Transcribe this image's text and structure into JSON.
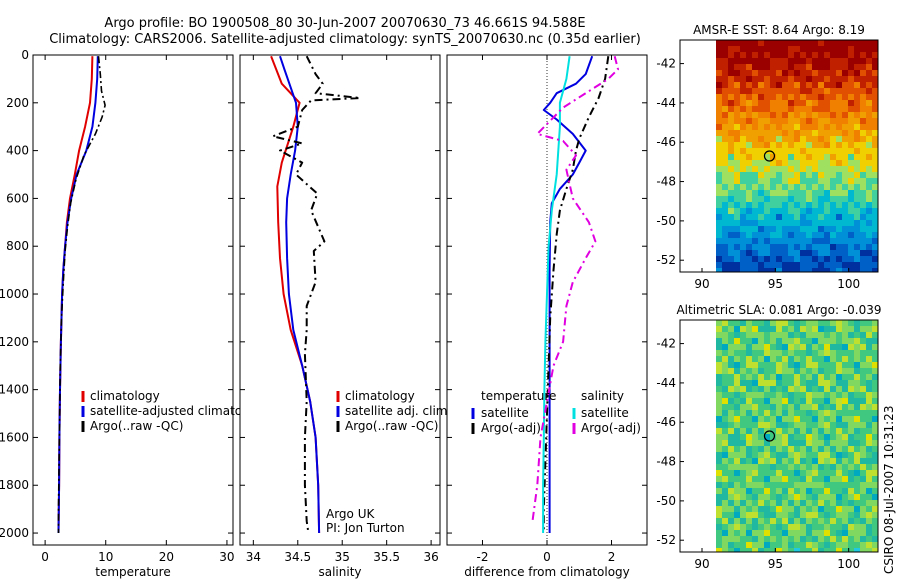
{
  "header": {
    "line1": "Argo profile: BO 1900508_80 30-Jun-2007 20070630_73 46.661S 94.588E",
    "line2": "Climatology: CARS2006. Satellite-adjusted climatology: synTS_20070630.nc (0.35d earlier)"
  },
  "footer": {
    "credit_line1": "Argo UK",
    "credit_line2": "PI: Jon Turton",
    "stamp": "CSIRO 08-Jul-2007 10:31:23"
  },
  "chart_data": [
    {
      "type": "line",
      "id": "temperature",
      "xlabel": "temperature",
      "ylabel": "",
      "xlim": [
        -2,
        31
      ],
      "ylim": [
        2050,
        0
      ],
      "xticks": [
        0,
        10,
        20,
        30
      ],
      "yticks": [
        0,
        200,
        400,
        600,
        800,
        1000,
        1200,
        1400,
        1600,
        1800,
        2000
      ],
      "legend": [
        "climatology",
        "satellite-adjusted climatology",
        "Argo(..raw -QC)"
      ],
      "series": [
        {
          "name": "climatology",
          "color": "#e00000",
          "dash": "",
          "width": 2,
          "points": [
            [
              7.8,
              5
            ],
            [
              7.7,
              100
            ],
            [
              7.4,
              200
            ],
            [
              6.6,
              300
            ],
            [
              5.6,
              400
            ],
            [
              4.9,
              500
            ],
            [
              4.1,
              600
            ],
            [
              3.6,
              700
            ],
            [
              3.3,
              800
            ],
            [
              3.0,
              900
            ],
            [
              2.8,
              1000
            ],
            [
              2.6,
              1200
            ],
            [
              2.45,
              1400
            ],
            [
              2.35,
              1600
            ],
            [
              2.3,
              1800
            ],
            [
              2.2,
              2000
            ]
          ]
        },
        {
          "name": "satellite-adjusted climatology",
          "color": "#0000e0",
          "dash": "",
          "width": 2,
          "points": [
            [
              8.7,
              5
            ],
            [
              8.6,
              100
            ],
            [
              8.3,
              200
            ],
            [
              7.8,
              300
            ],
            [
              6.8,
              400
            ],
            [
              5.2,
              500
            ],
            [
              4.3,
              600
            ],
            [
              3.7,
              700
            ],
            [
              3.3,
              800
            ],
            [
              3.0,
              900
            ],
            [
              2.8,
              1000
            ],
            [
              2.6,
              1200
            ],
            [
              2.45,
              1400
            ],
            [
              2.35,
              1600
            ],
            [
              2.3,
              1800
            ],
            [
              2.2,
              2000
            ]
          ]
        },
        {
          "name": "Argo(..raw -QC)",
          "color": "#000000",
          "dash": "7,3,2,3",
          "width": 1.6,
          "points": [
            [
              8.8,
              5
            ],
            [
              9.1,
              80
            ],
            [
              9.3,
              150
            ],
            [
              9.9,
              210
            ],
            [
              9.4,
              260
            ],
            [
              8.3,
              330
            ],
            [
              6.4,
              420
            ],
            [
              5.1,
              520
            ],
            [
              4.2,
              620
            ],
            [
              3.7,
              720
            ],
            [
              3.3,
              820
            ],
            [
              3.0,
              950
            ],
            [
              2.7,
              1100
            ],
            [
              2.5,
              1300
            ],
            [
              2.4,
              1500
            ],
            [
              2.3,
              1700
            ],
            [
              2.2,
              1900
            ],
            [
              2.2,
              2000
            ]
          ]
        }
      ]
    },
    {
      "type": "line",
      "id": "salinity",
      "xlabel": "salinity",
      "ylabel": "",
      "xlim": [
        33.85,
        36.1
      ],
      "ylim": [
        2050,
        0
      ],
      "xticks": [
        34,
        34.5,
        35,
        35.5,
        36
      ],
      "legend": [
        "climatology",
        "satellite adj. clim.",
        "Argo(..raw -QC)"
      ],
      "series": [
        {
          "name": "climatology",
          "color": "#e00000",
          "dash": "",
          "width": 2,
          "points": [
            [
              34.2,
              5
            ],
            [
              34.32,
              120
            ],
            [
              34.52,
              200
            ],
            [
              34.45,
              300
            ],
            [
              34.32,
              450
            ],
            [
              34.27,
              550
            ],
            [
              34.28,
              700
            ],
            [
              34.3,
              850
            ],
            [
              34.34,
              1000
            ],
            [
              34.42,
              1150
            ],
            [
              34.55,
              1300
            ],
            [
              34.64,
              1450
            ],
            [
              34.7,
              1600
            ],
            [
              34.73,
              1800
            ],
            [
              34.74,
              2000
            ]
          ]
        },
        {
          "name": "satellite adj. clim.",
          "color": "#0000e0",
          "dash": "",
          "width": 2,
          "points": [
            [
              34.3,
              5
            ],
            [
              34.35,
              60
            ],
            [
              34.48,
              200
            ],
            [
              34.5,
              300
            ],
            [
              34.47,
              400
            ],
            [
              34.42,
              500
            ],
            [
              34.38,
              600
            ],
            [
              34.37,
              700
            ],
            [
              34.38,
              850
            ],
            [
              34.4,
              1000
            ],
            [
              34.45,
              1150
            ],
            [
              34.55,
              1300
            ],
            [
              34.64,
              1450
            ],
            [
              34.7,
              1600
            ],
            [
              34.73,
              1800
            ],
            [
              34.74,
              2000
            ]
          ]
        },
        {
          "name": "Argo(..raw -QC)",
          "color": "#000000",
          "dash": "8,4,2,4",
          "width": 2,
          "points": [
            [
              34.6,
              5
            ],
            [
              34.7,
              80
            ],
            [
              34.78,
              120
            ],
            [
              34.7,
              160
            ],
            [
              35.2,
              180
            ],
            [
              34.65,
              190
            ],
            [
              34.55,
              230
            ],
            [
              34.5,
              300
            ],
            [
              34.22,
              340
            ],
            [
              34.55,
              370
            ],
            [
              34.3,
              400
            ],
            [
              34.55,
              450
            ],
            [
              34.48,
              500
            ],
            [
              34.72,
              580
            ],
            [
              34.65,
              650
            ],
            [
              34.8,
              780
            ],
            [
              34.68,
              820
            ],
            [
              34.7,
              950
            ],
            [
              34.6,
              1050
            ],
            [
              34.6,
              1150
            ],
            [
              34.58,
              1250
            ],
            [
              34.6,
              1450
            ],
            [
              34.58,
              1600
            ],
            [
              34.58,
              1800
            ],
            [
              34.6,
              1950
            ],
            [
              34.62,
              2000
            ]
          ]
        }
      ]
    },
    {
      "type": "line",
      "id": "difference",
      "xlabel": "difference from climatology",
      "ylabel": "",
      "xlim": [
        -3.1,
        3.1
      ],
      "ylim": [
        2050,
        0
      ],
      "xticks": [
        -2,
        0,
        2
      ],
      "legend_left_title": "temperature",
      "legend_left": [
        "satellite",
        "Argo(-adj)"
      ],
      "legend_right_title": "salinity",
      "legend_right": [
        "satellite",
        "Argo(-adj)"
      ],
      "series": [
        {
          "name": "temperature satellite",
          "color": "#0000e0",
          "dash": "",
          "width": 2,
          "points": [
            [
              1.4,
              5
            ],
            [
              1.2,
              80
            ],
            [
              0.9,
              120
            ],
            [
              0.3,
              160
            ],
            [
              0.1,
              200
            ],
            [
              -0.1,
              230
            ],
            [
              0.3,
              270
            ],
            [
              0.8,
              330
            ],
            [
              1.2,
              400
            ],
            [
              1.0,
              450
            ],
            [
              0.8,
              500
            ],
            [
              0.4,
              560
            ],
            [
              0.15,
              620
            ],
            [
              0.1,
              700
            ],
            [
              0.08,
              900
            ],
            [
              0.08,
              1200
            ],
            [
              0.08,
              1600
            ],
            [
              0.08,
              2000
            ]
          ]
        },
        {
          "name": "temperature Argo(-adj)",
          "color": "#000000",
          "dash": "8,4,2,4",
          "width": 2,
          "points": [
            [
              1.9,
              5
            ],
            [
              1.8,
              100
            ],
            [
              1.6,
              180
            ],
            [
              1.3,
              260
            ],
            [
              1.0,
              350
            ],
            [
              0.9,
              400
            ],
            [
              0.8,
              480
            ],
            [
              0.6,
              560
            ],
            [
              0.4,
              650
            ],
            [
              0.3,
              750
            ],
            [
              0.2,
              900
            ],
            [
              0.1,
              1100
            ],
            [
              0.05,
              1300
            ],
            [
              0.0,
              1500
            ],
            [
              -0.05,
              1700
            ],
            [
              -0.1,
              1900
            ],
            [
              -0.1,
              2000
            ]
          ]
        },
        {
          "name": "salinity satellite",
          "color": "#00e0e0",
          "dash": "",
          "width": 2,
          "points": [
            [
              0.7,
              5
            ],
            [
              0.6,
              100
            ],
            [
              0.4,
              200
            ],
            [
              0.4,
              300
            ],
            [
              0.35,
              400
            ],
            [
              0.3,
              500
            ],
            [
              0.15,
              650
            ],
            [
              0.05,
              800
            ],
            [
              0.0,
              1000
            ],
            [
              -0.05,
              1200
            ],
            [
              -0.08,
              1400
            ],
            [
              -0.1,
              1600
            ],
            [
              -0.12,
              1800
            ],
            [
              -0.12,
              2000
            ]
          ]
        },
        {
          "name": "salinity Argo(-adj)",
          "color": "#e000e0",
          "dash": "8,4,2,4",
          "width": 2,
          "points": [
            [
              2.1,
              5
            ],
            [
              2.2,
              60
            ],
            [
              1.9,
              100
            ],
            [
              1.2,
              160
            ],
            [
              0.5,
              220
            ],
            [
              -0.3,
              330
            ],
            [
              0.5,
              360
            ],
            [
              0.9,
              420
            ],
            [
              0.6,
              480
            ],
            [
              0.8,
              600
            ],
            [
              1.3,
              700
            ],
            [
              1.5,
              780
            ],
            [
              1.2,
              850
            ],
            [
              0.8,
              950
            ],
            [
              0.6,
              1050
            ],
            [
              0.5,
              1200
            ],
            [
              0.2,
              1300
            ],
            [
              0.0,
              1450
            ],
            [
              -0.2,
              1600
            ],
            [
              -0.3,
              1800
            ],
            [
              -0.45,
              1950
            ]
          ]
        }
      ]
    },
    {
      "type": "heatmap",
      "id": "sst",
      "title": "AMSR-E SST: 8.64 Argo: 8.19",
      "xticks": [
        90,
        95,
        100
      ],
      "yticks": [
        -42,
        -44,
        -46,
        -48,
        -50,
        -52
      ],
      "xlim": [
        88.5,
        102
      ],
      "ylim": [
        -52.6,
        -40.8
      ],
      "marker": [
        94.6,
        -46.7
      ],
      "colors": [
        "#9a0000",
        "#c02000",
        "#e05000",
        "#f08000",
        "#f0a000",
        "#f0d000",
        "#a0e060",
        "#40d0a0",
        "#00b8d0",
        "#0090d8",
        "#0060c8",
        "#0030a0"
      ]
    },
    {
      "type": "heatmap",
      "id": "sla",
      "title": "Altimetric SLA: 0.081 Argo: -0.039",
      "xticks": [
        90,
        95,
        100
      ],
      "yticks": [
        -42,
        -44,
        -46,
        -48,
        -50,
        -52
      ],
      "xlim": [
        88.5,
        102
      ],
      "ylim": [
        -52.6,
        -40.8
      ],
      "marker": [
        94.6,
        -46.7
      ],
      "colors": [
        "#e0e000",
        "#c0e030",
        "#80d860",
        "#40c880",
        "#20b8a0",
        "#00a8c0",
        "#20c8e0"
      ]
    }
  ]
}
